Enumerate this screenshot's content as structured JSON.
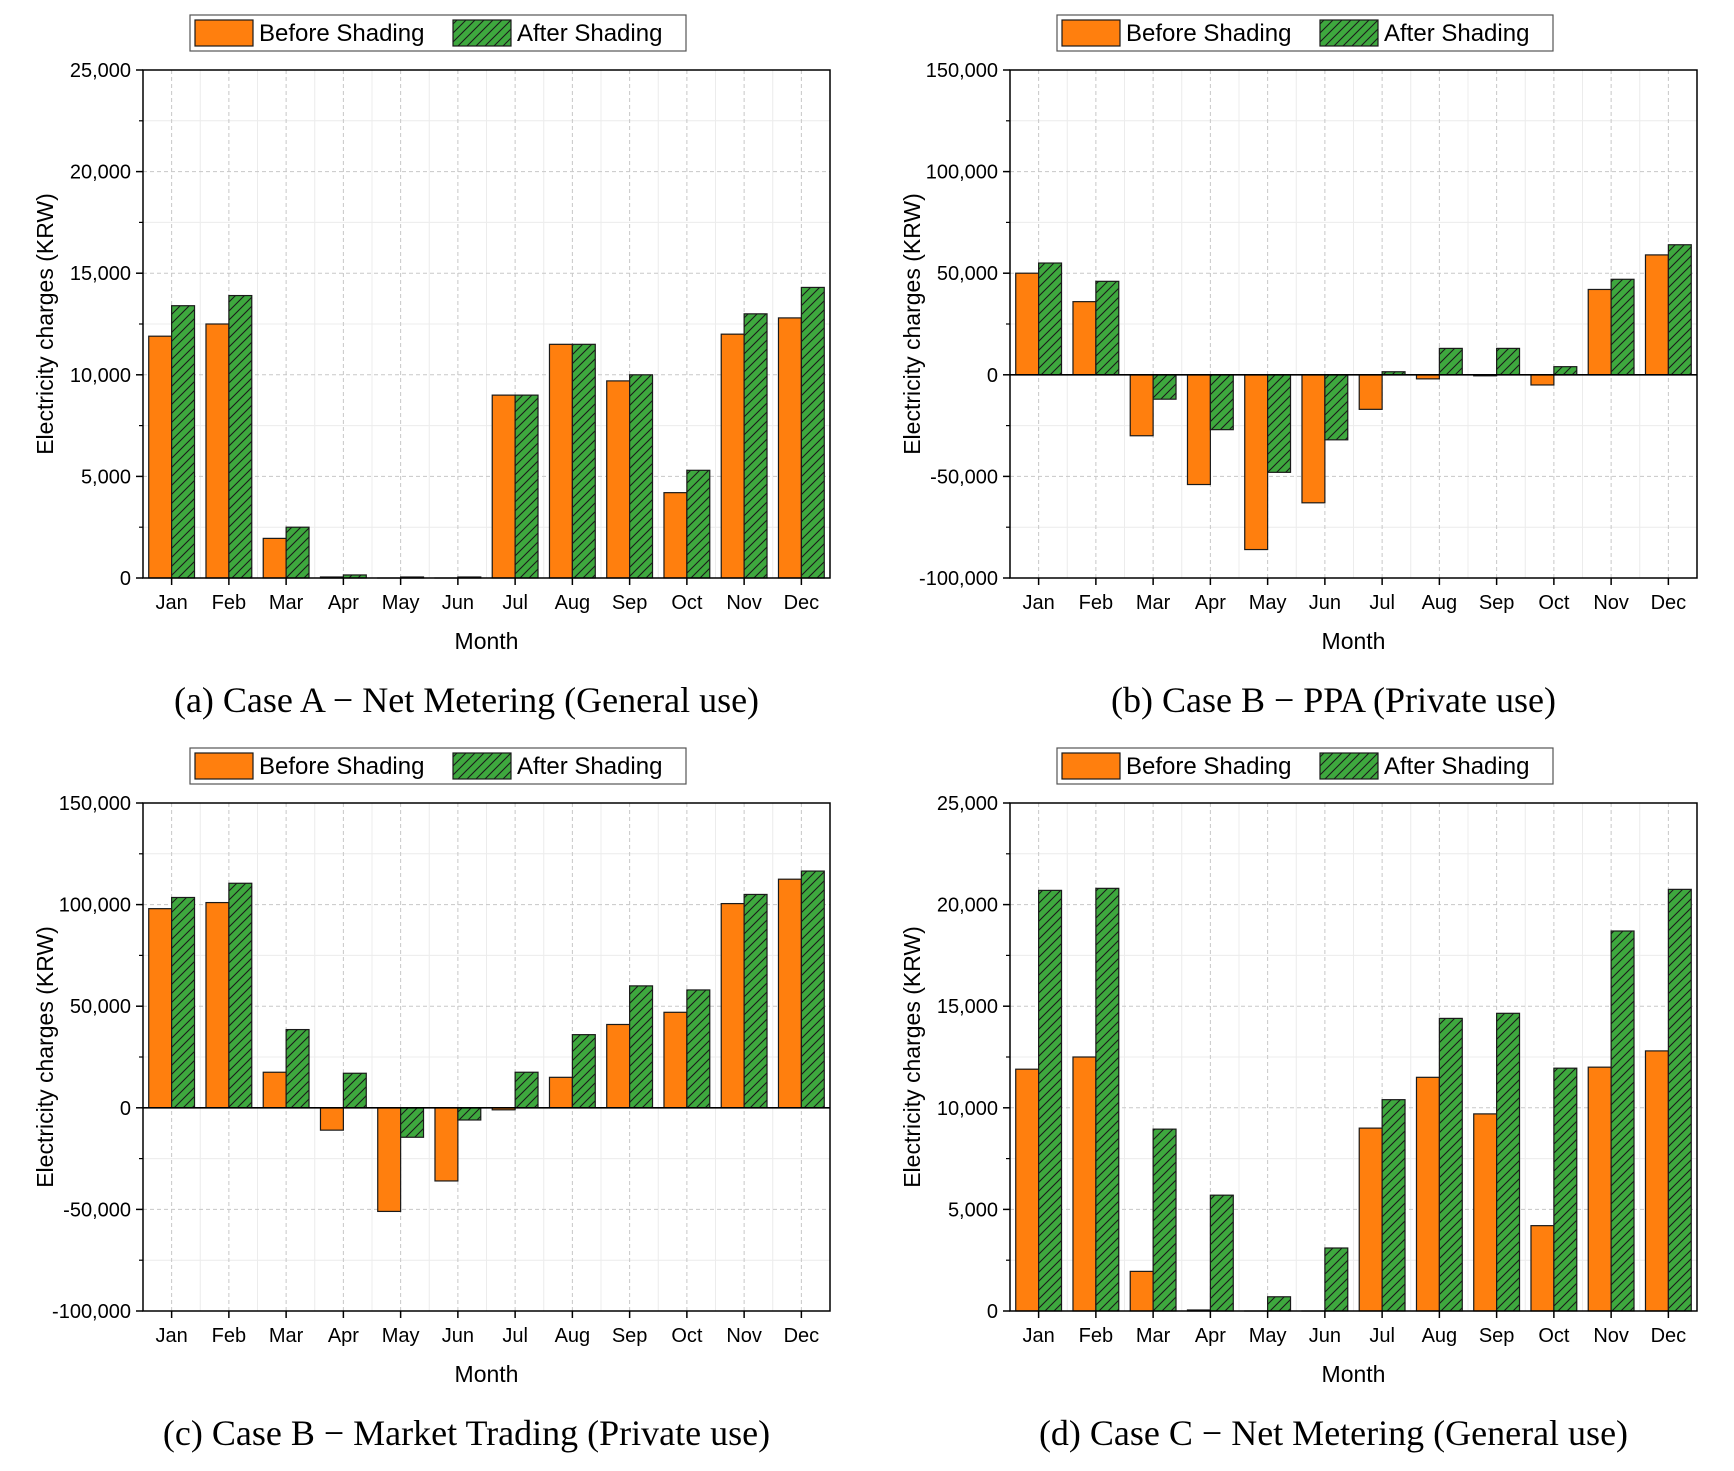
{
  "colors": {
    "before": "#ff7f0e",
    "after": "#3ea83e",
    "grid": "#c8c8c8"
  },
  "chart_data": [
    {
      "type": "bar",
      "caption": "(a) Case A − Net Metering (General use)",
      "xlabel": "Month",
      "ylabel": "Electricity charges (KRW)",
      "categories": [
        "Jan",
        "Feb",
        "Mar",
        "Apr",
        "May",
        "Jun",
        "Jul",
        "Aug",
        "Sep",
        "Oct",
        "Nov",
        "Dec"
      ],
      "ylim": [
        0,
        25000
      ],
      "yticks": [
        0,
        5000,
        10000,
        15000,
        20000,
        25000
      ],
      "ytick_labels": [
        "0",
        "5,000",
        "10,000",
        "15,000",
        "20,000",
        "25,000"
      ],
      "legend": [
        "Before Shading",
        "After Shading"
      ],
      "legend_position": "top-center",
      "series": [
        {
          "name": "Before Shading",
          "values": [
            11900,
            12500,
            1950,
            50,
            0,
            0,
            9000,
            11500,
            9700,
            4200,
            12000,
            12800
          ]
        },
        {
          "name": "After Shading",
          "values": [
            13400,
            13900,
            2500,
            150,
            50,
            50,
            9000,
            11500,
            10000,
            5300,
            13000,
            14300
          ]
        }
      ]
    },
    {
      "type": "bar",
      "caption": "(b) Case B − PPA (Private use)",
      "xlabel": "Month",
      "ylabel": "Electricity charges (KRW)",
      "categories": [
        "Jan",
        "Feb",
        "Mar",
        "Apr",
        "May",
        "Jun",
        "Jul",
        "Aug",
        "Sep",
        "Oct",
        "Nov",
        "Dec"
      ],
      "ylim": [
        -100000,
        150000
      ],
      "yticks": [
        -100000,
        -50000,
        0,
        50000,
        100000,
        150000
      ],
      "ytick_labels": [
        "-100,000",
        "-50,000",
        "0",
        "50,000",
        "100,000",
        "150,000"
      ],
      "legend": [
        "Before Shading",
        "After Shading"
      ],
      "legend_position": "top-center",
      "series": [
        {
          "name": "Before Shading",
          "values": [
            50000,
            36000,
            -30000,
            -54000,
            -86000,
            -63000,
            -17000,
            -2000,
            -500,
            -5000,
            42000,
            59000
          ]
        },
        {
          "name": "After Shading",
          "values": [
            55000,
            46000,
            -12000,
            -27000,
            -48000,
            -32000,
            1500,
            13000,
            13000,
            4000,
            47000,
            64000
          ]
        }
      ]
    },
    {
      "type": "bar",
      "caption": "(c) Case B − Market Trading (Private use)",
      "xlabel": "Month",
      "ylabel": "Electricity charges (KRW)",
      "categories": [
        "Jan",
        "Feb",
        "Mar",
        "Apr",
        "May",
        "Jun",
        "Jul",
        "Aug",
        "Sep",
        "Oct",
        "Nov",
        "Dec"
      ],
      "ylim": [
        -100000,
        150000
      ],
      "yticks": [
        -100000,
        -50000,
        0,
        50000,
        100000,
        150000
      ],
      "ytick_labels": [
        "-100,000",
        "-50,000",
        "0",
        "50,000",
        "100,000",
        "150,000"
      ],
      "legend": [
        "Before Shading",
        "After Shading"
      ],
      "legend_position": "top-center",
      "series": [
        {
          "name": "Before Shading",
          "values": [
            98000,
            101000,
            17500,
            -11000,
            -51000,
            -36000,
            -1000,
            15000,
            41000,
            47000,
            100500,
            112500
          ]
        },
        {
          "name": "After Shading",
          "values": [
            103500,
            110500,
            38500,
            17000,
            -14500,
            -6000,
            17500,
            36000,
            60000,
            58000,
            105000,
            116500
          ]
        }
      ]
    },
    {
      "type": "bar",
      "caption": "(d) Case C − Net Metering (General use)",
      "xlabel": "Month",
      "ylabel": "Electricity charges (KRW)",
      "categories": [
        "Jan",
        "Feb",
        "Mar",
        "Apr",
        "May",
        "Jun",
        "Jul",
        "Aug",
        "Sep",
        "Oct",
        "Nov",
        "Dec"
      ],
      "ylim": [
        0,
        25000
      ],
      "yticks": [
        0,
        5000,
        10000,
        15000,
        20000,
        25000
      ],
      "ytick_labels": [
        "0",
        "5,000",
        "10,000",
        "15,000",
        "20,000",
        "25,000"
      ],
      "legend": [
        "Before Shading",
        "After Shading"
      ],
      "legend_position": "top-center",
      "series": [
        {
          "name": "Before Shading",
          "values": [
            11900,
            12500,
            1950,
            50,
            0,
            0,
            9000,
            11500,
            9700,
            4200,
            12000,
            12800
          ]
        },
        {
          "name": "After Shading",
          "values": [
            20700,
            20800,
            8950,
            5700,
            700,
            3100,
            10400,
            14400,
            14650,
            11950,
            18700,
            20750
          ]
        }
      ]
    }
  ]
}
